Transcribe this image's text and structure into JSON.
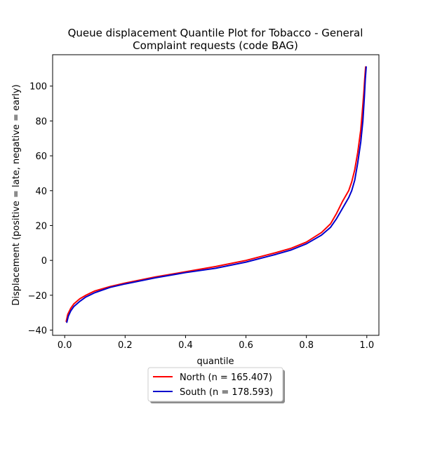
{
  "chart_data": {
    "type": "line",
    "title_lines": [
      "Queue displacement Quantile Plot for Tobacco - General",
      "Complaint  requests (code BAG)"
    ],
    "xlabel": "quantile",
    "ylabel": "Displacement (positive = late, negative = early)",
    "xlim": [
      -0.04,
      1.04
    ],
    "ylim": [
      -43,
      118
    ],
    "xticks": [
      0.0,
      0.2,
      0.4,
      0.6,
      0.8,
      1.0
    ],
    "xtick_labels": [
      "0.0",
      "0.2",
      "0.4",
      "0.6",
      "0.8",
      "1.0"
    ],
    "yticks": [
      -40,
      -20,
      0,
      20,
      40,
      60,
      80,
      100
    ],
    "ytick_labels": [
      "−40",
      "−20",
      "0",
      "20",
      "40",
      "60",
      "80",
      "100"
    ],
    "grid": false,
    "legend_position": "below-center",
    "series": [
      {
        "name": "North (n = 165.407)",
        "color": "#ff0000",
        "x": [
          0.005,
          0.01,
          0.02,
          0.03,
          0.05,
          0.07,
          0.1,
          0.15,
          0.2,
          0.3,
          0.4,
          0.5,
          0.6,
          0.7,
          0.75,
          0.8,
          0.85,
          0.88,
          0.9,
          0.92,
          0.94,
          0.95,
          0.96,
          0.97,
          0.98,
          0.985,
          0.99,
          0.993,
          0.996
        ],
        "y": [
          -35,
          -31,
          -27.5,
          -25,
          -22,
          -20,
          -17.5,
          -15,
          -13,
          -9.5,
          -6.5,
          -3.5,
          0,
          4.5,
          7,
          10.5,
          16,
          21,
          27,
          34,
          40,
          45,
          52,
          62,
          75,
          85,
          96,
          104,
          111
        ]
      },
      {
        "name": "South (n = 178.593)",
        "color": "#0000cc",
        "x": [
          0.007,
          0.012,
          0.02,
          0.03,
          0.05,
          0.07,
          0.1,
          0.15,
          0.2,
          0.3,
          0.4,
          0.5,
          0.6,
          0.7,
          0.75,
          0.8,
          0.85,
          0.88,
          0.9,
          0.92,
          0.94,
          0.95,
          0.96,
          0.97,
          0.98,
          0.987,
          0.992,
          0.995,
          0.998
        ],
        "y": [
          -35.5,
          -32,
          -29,
          -26.5,
          -23.5,
          -21,
          -18.5,
          -15.5,
          -13.5,
          -10,
          -7,
          -4.5,
          -1,
          3.5,
          6,
          9.5,
          14.5,
          19,
          24,
          30,
          36,
          40,
          46,
          56,
          68,
          80,
          94,
          104,
          111
        ]
      }
    ]
  }
}
